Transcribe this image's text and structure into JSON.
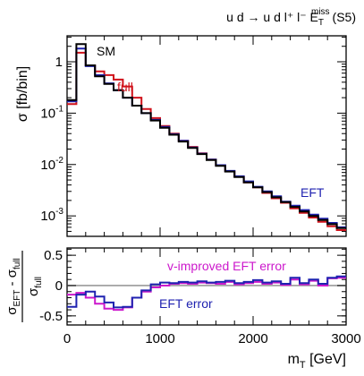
{
  "chart_data": [
    {
      "type": "line",
      "title": "u d → u d l⁺ l⁻ E",
      "title_sub": "T",
      "title_sup": "miss",
      "title_suffix": "(S5)",
      "ylabel": "σ [fb/bin]",
      "yscale": "log",
      "ylim": [
        0.0004,
        3.2
      ],
      "xlim": [
        0,
        3000
      ],
      "bin_width": 100,
      "y_ticks": [
        {
          "value": 1,
          "label": "1"
        },
        {
          "value": 0.1,
          "label": "10",
          "exp": "-1"
        },
        {
          "value": 0.01,
          "label": "10",
          "exp": "-2"
        },
        {
          "value": 0.001,
          "label": "10",
          "exp": "-3"
        }
      ],
      "annotations": [
        {
          "text": "SM",
          "color": "#000000"
        },
        {
          "text": "full",
          "color": "#d0121b"
        },
        {
          "text": "EFT",
          "color": "#1f22b0"
        }
      ],
      "series": [
        {
          "name": "SM",
          "color": "#000000",
          "x": [
            0,
            100,
            200,
            300,
            400,
            500,
            600,
            700,
            800,
            900,
            1000,
            1100,
            1200,
            1300,
            1400,
            1500,
            1600,
            1700,
            1800,
            1900,
            2000,
            2100,
            2200,
            2300,
            2400,
            2500,
            2600,
            2700,
            2800,
            2900
          ],
          "values": [
            0.18,
            2.2,
            0.85,
            0.52,
            0.37,
            0.28,
            0.2,
            0.14,
            0.1,
            0.072,
            0.052,
            0.038,
            0.028,
            0.021,
            0.016,
            0.0122,
            0.0094,
            0.0073,
            0.0057,
            0.0045,
            0.0036,
            0.0029,
            0.0023,
            0.00185,
            0.0015,
            0.00122,
            0.001,
            0.00083,
            0.00069,
            0.00058
          ]
        },
        {
          "name": "full",
          "color": "#d0121b",
          "x": [
            0,
            100,
            200,
            300,
            400,
            500,
            600,
            700,
            800,
            900,
            1000,
            1100,
            1200,
            1300,
            1400,
            1500,
            1600,
            1700,
            1800,
            1900,
            2000,
            2100,
            2200,
            2300,
            2400,
            2500,
            2600,
            2700,
            2800,
            2900
          ],
          "values": [
            0.15,
            1.5,
            0.85,
            0.65,
            0.55,
            0.45,
            0.33,
            0.2,
            0.12,
            0.08,
            0.056,
            0.04,
            0.029,
            0.022,
            0.0165,
            0.0125,
            0.0096,
            0.0074,
            0.0058,
            0.0045,
            0.0036,
            0.0028,
            0.0022,
            0.0018,
            0.0014,
            0.00115,
            0.00093,
            0.00077,
            0.00063,
            0.00053
          ]
        },
        {
          "name": "EFT",
          "color": "#1f22b0",
          "x": [
            0,
            100,
            200,
            300,
            400,
            500,
            600,
            700,
            800,
            900,
            1000,
            1100,
            1200,
            1300,
            1400,
            1500,
            1600,
            1700,
            1800,
            1900,
            2000,
            2100,
            2200,
            2300,
            2400,
            2500,
            2600,
            2700,
            2800,
            2900
          ],
          "values": [
            0.17,
            1.8,
            0.82,
            0.55,
            0.38,
            0.28,
            0.2,
            0.14,
            0.1,
            0.074,
            0.054,
            0.039,
            0.029,
            0.0215,
            0.0163,
            0.0125,
            0.0097,
            0.0075,
            0.0059,
            0.0047,
            0.0037,
            0.003,
            0.0024,
            0.0019,
            0.00158,
            0.0013,
            0.00106,
            0.00088,
            0.00073,
            0.0006
          ]
        }
      ]
    },
    {
      "type": "line",
      "xlabel": "m",
      "xlabel_sub": "T",
      "xlabel_suffix": " [GeV]",
      "ylabel_num": "σ",
      "ylabel_num_sub1": "EFT",
      "ylabel_num_minus": " - σ",
      "ylabel_num_sub2": "full",
      "ylabel_den": "σ",
      "ylabel_den_sub": "full",
      "ylim": [
        -0.65,
        0.62
      ],
      "xlim": [
        0,
        3000
      ],
      "bin_width": 100,
      "reference_line": 0,
      "x_ticks": [
        {
          "value": 0,
          "label": "0"
        },
        {
          "value": 1000,
          "label": "1000"
        },
        {
          "value": 2000,
          "label": "2000"
        },
        {
          "value": 3000,
          "label": "3000"
        }
      ],
      "y_ticks": [
        {
          "value": 0.5,
          "label": "0.5"
        },
        {
          "value": 0,
          "label": "0"
        },
        {
          "value": -0.5,
          "label": "-0.5"
        }
      ],
      "annotations": [
        {
          "text": "v-improved EFT error",
          "color": "#cc18cc"
        },
        {
          "text": "EFT error",
          "color": "#1f22b0"
        }
      ],
      "series": [
        {
          "name": "v-improved EFT error",
          "color": "#cc18cc",
          "x": [
            0,
            100,
            200,
            300,
            400,
            500,
            600,
            700,
            800,
            900,
            1000,
            1100,
            1200,
            1300,
            1400,
            1500,
            1600,
            1700,
            1800,
            1900,
            2000,
            2100,
            2200,
            2300,
            2400,
            2500,
            2600,
            2700,
            2800,
            2900
          ],
          "values": [
            -0.15,
            -0.12,
            -0.2,
            -0.3,
            -0.38,
            -0.4,
            -0.36,
            -0.2,
            -0.1,
            -0.03,
            0.0,
            0.03,
            0.04,
            0.03,
            0.05,
            0.04,
            0.03,
            0.06,
            0.02,
            0.04,
            0.06,
            0.03,
            0.05,
            0.01,
            0.1,
            0.02,
            0.08,
            0.0,
            0.12,
            0.13
          ]
        },
        {
          "name": "EFT error",
          "color": "#1f22b0",
          "x": [
            0,
            100,
            200,
            300,
            400,
            500,
            600,
            700,
            800,
            900,
            1000,
            1100,
            1200,
            1300,
            1400,
            1500,
            1600,
            1700,
            1800,
            1900,
            2000,
            2100,
            2200,
            2300,
            2400,
            2500,
            2600,
            2700,
            2800,
            2900
          ],
          "values": [
            -0.35,
            -0.15,
            -0.1,
            -0.18,
            -0.28,
            -0.36,
            -0.35,
            -0.2,
            -0.08,
            0.02,
            0.05,
            0.04,
            0.06,
            0.05,
            0.07,
            0.05,
            0.06,
            0.08,
            0.04,
            0.06,
            0.09,
            0.05,
            0.07,
            0.03,
            0.13,
            0.04,
            0.1,
            0.03,
            0.13,
            0.15
          ]
        }
      ]
    }
  ]
}
